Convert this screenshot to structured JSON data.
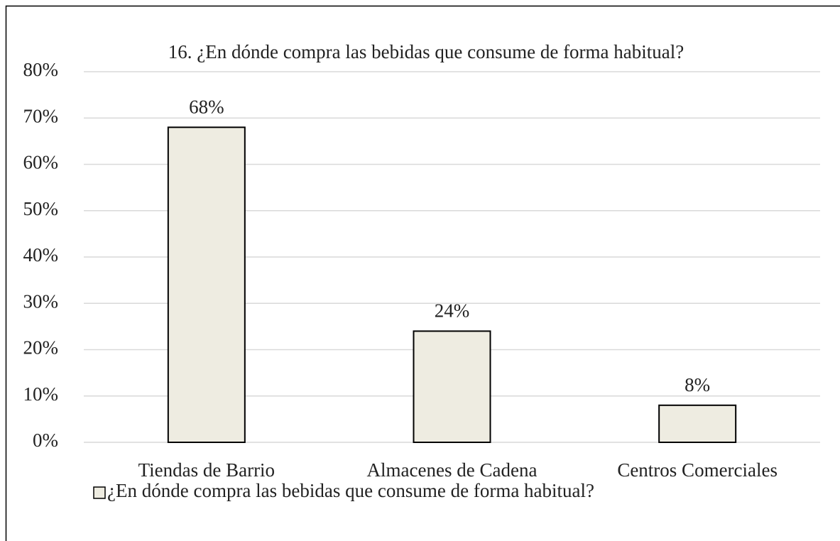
{
  "chart_data": {
    "type": "bar",
    "title": "16. ¿En dónde compra las bebidas que consume de forma habitual?",
    "categories": [
      "Tiendas de Barrio",
      "Almacenes de Cadena",
      "Centros Comerciales"
    ],
    "series": [
      {
        "name": "¿En dónde compra las bebidas que consume de forma habitual?",
        "color": "#eeece1",
        "values": [
          68,
          24,
          8
        ],
        "value_labels": [
          "68%",
          "24%",
          "8%"
        ]
      }
    ],
    "ylim": [
      0,
      80
    ],
    "yticks": [
      {
        "value": 0,
        "label": "0%"
      },
      {
        "value": 10,
        "label": "10%"
      },
      {
        "value": 20,
        "label": "20%"
      },
      {
        "value": 30,
        "label": "30%"
      },
      {
        "value": 40,
        "label": "40%"
      },
      {
        "value": 50,
        "label": "50%"
      },
      {
        "value": 60,
        "label": "60%"
      },
      {
        "value": 70,
        "label": "70%"
      },
      {
        "value": 80,
        "label": "80%"
      }
    ],
    "grid": true,
    "legend": "bottom"
  }
}
